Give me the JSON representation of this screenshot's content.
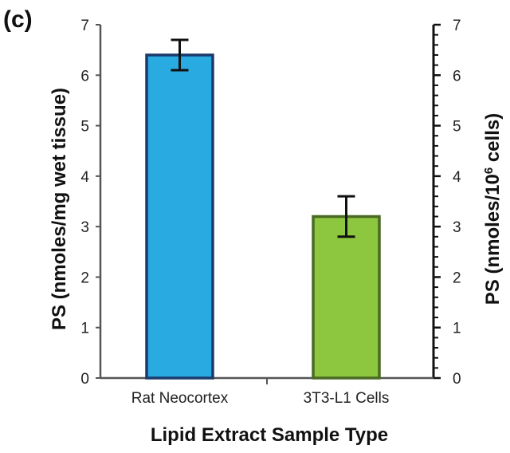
{
  "panel_label": "(c)",
  "chart_data": {
    "type": "bar",
    "categories": [
      "Rat Neocortex",
      "3T3-L1 Cells"
    ],
    "values": [
      6.4,
      3.2
    ],
    "error": [
      0.3,
      0.4
    ],
    "colors": {
      "fills": [
        "#29abe2",
        "#8dc63f"
      ],
      "borders": [
        "#1b3a6b",
        "#4a6a23"
      ]
    },
    "xlabel": "Lipid Extract Sample Type",
    "ylabel": "PS (nmoles/mg wet tissue)",
    "ylabel_right": "PS (nmoles/10",
    "ylabel_right_sup": "6",
    "ylabel_right_end": " cells)",
    "ylim": [
      0,
      7
    ],
    "yticks": [
      "0",
      "1",
      "2",
      "3",
      "4",
      "5",
      "6",
      "7"
    ],
    "y2ticks": [
      "0",
      "1",
      "2",
      "3",
      "4",
      "5",
      "6",
      "7"
    ]
  }
}
